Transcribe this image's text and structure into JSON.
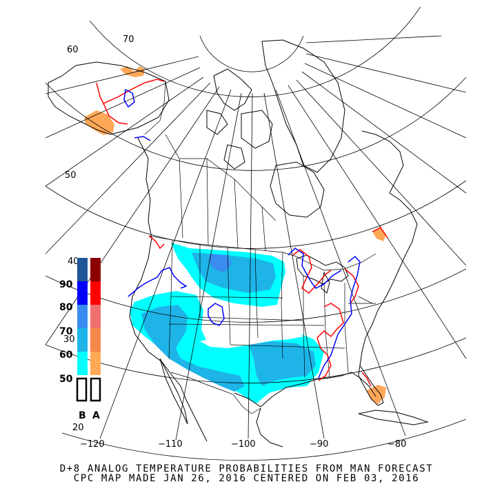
{
  "title": {
    "line1": "D+8 ANALOG TEMPERATURE PROBABILITIES FROM MAN FORECAST",
    "line2": "CPC MAP MADE JAN 26, 2016 CENTERED ON FEB 03, 2016"
  },
  "graticule": {
    "longitude_labels": [
      "−120",
      "−110",
      "−100",
      "−90",
      "−80"
    ],
    "latitude_labels": [
      "20",
      "30",
      "40",
      "50",
      "60",
      "70"
    ]
  },
  "legend": {
    "levels": [
      "90",
      "80",
      "70",
      "60",
      "50"
    ],
    "below_label": "B",
    "above_label": "A",
    "below_colors": [
      "#1f5596",
      "#0000ff",
      "#3a8cf0",
      "#1eb4e8",
      "#00ffff"
    ],
    "above_colors": [
      "#8b0000",
      "#ff0000",
      "#f07070",
      "#f4884a",
      "#ffa858"
    ]
  },
  "colors": {
    "below_50": "#00ffff",
    "below_60": "#1eb4e8",
    "below_70": "#3a8cf0",
    "above_50": "#ffa858",
    "contour_below": "#0000ff",
    "contour_above": "#ff0000"
  }
}
